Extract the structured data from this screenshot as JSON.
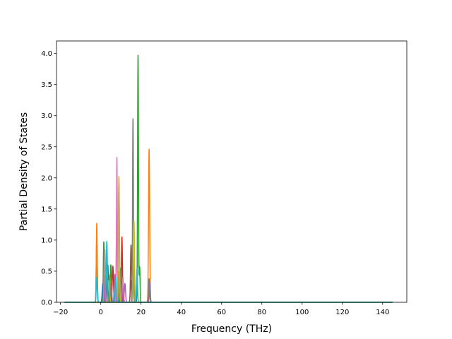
{
  "chart_data": {
    "type": "line",
    "title": "",
    "xlabel": "Frequency (THz)",
    "ylabel": "Partial Density of States",
    "xlim": [
      -22,
      152
    ],
    "ylim": [
      0,
      4.2
    ],
    "xticks": [
      -20,
      0,
      20,
      40,
      60,
      80,
      100,
      120,
      140
    ],
    "yticks": [
      0.0,
      0.5,
      1.0,
      1.5,
      2.0,
      2.5,
      3.0,
      3.5,
      4.0
    ],
    "xtick_labels": [
      "−20",
      "0",
      "20",
      "40",
      "60",
      "80",
      "100",
      "120",
      "140"
    ],
    "ytick_labels": [
      "0.0",
      "0.5",
      "1.0",
      "1.5",
      "2.0",
      "2.5",
      "3.0",
      "3.5",
      "4.0"
    ],
    "grid": false,
    "legend": "none",
    "baseline_range": [
      -18,
      145
    ],
    "series_colors": [
      "#1f77b4",
      "#ff7f0e",
      "#2ca02c",
      "#d62728",
      "#9467bd",
      "#8c564b",
      "#e377c2",
      "#7f7f7f",
      "#bcbd22",
      "#17becf"
    ],
    "series": [
      {
        "color_index": 0,
        "peaks": [
          [
            -2.0,
            1.05,
            0.25
          ],
          [
            1.0,
            0.3,
            0.3
          ],
          [
            4.5,
            0.25,
            0.35
          ],
          [
            8.0,
            1.62,
            0.25
          ],
          [
            11.0,
            0.2,
            0.3
          ]
        ]
      },
      {
        "color_index": 1,
        "peaks": [
          [
            -2.0,
            1.27,
            0.22
          ],
          [
            4.0,
            0.45,
            0.35
          ],
          [
            9.0,
            0.5,
            0.3
          ],
          [
            24.0,
            2.46,
            0.28
          ]
        ]
      },
      {
        "color_index": 2,
        "peaks": [
          [
            1.5,
            0.97,
            0.25
          ],
          [
            5.0,
            0.6,
            0.3
          ],
          [
            10.0,
            0.55,
            0.3
          ],
          [
            18.5,
            3.97,
            0.22
          ],
          [
            19.3,
            0.57,
            0.2
          ]
        ]
      },
      {
        "color_index": 3,
        "peaks": [
          [
            3.0,
            0.78,
            0.3
          ],
          [
            6.0,
            0.58,
            0.3
          ],
          [
            10.5,
            1.05,
            0.25
          ],
          [
            15.0,
            0.35,
            0.3
          ]
        ]
      },
      {
        "color_index": 4,
        "peaks": [
          [
            2.5,
            0.5,
            0.3
          ],
          [
            7.0,
            0.45,
            0.3
          ],
          [
            12.0,
            0.3,
            0.3
          ],
          [
            24.3,
            0.32,
            0.25
          ]
        ]
      },
      {
        "color_index": 5,
        "peaks": [
          [
            3.5,
            0.6,
            0.3
          ],
          [
            9.0,
            1.9,
            0.25
          ],
          [
            15.0,
            0.92,
            0.25
          ]
        ]
      },
      {
        "color_index": 6,
        "peaks": [
          [
            2.0,
            0.85,
            0.3
          ],
          [
            8.0,
            2.33,
            0.22
          ],
          [
            11.0,
            0.4,
            0.3
          ]
        ]
      },
      {
        "color_index": 7,
        "peaks": [
          [
            5.0,
            0.3,
            0.3
          ],
          [
            9.5,
            0.5,
            0.3
          ],
          [
            16.0,
            2.95,
            0.22
          ],
          [
            24.0,
            0.38,
            0.25
          ]
        ]
      },
      {
        "color_index": 8,
        "peaks": [
          [
            4.0,
            0.35,
            0.35
          ],
          [
            9.0,
            2.02,
            0.25
          ],
          [
            16.5,
            1.3,
            0.25
          ]
        ]
      },
      {
        "color_index": 9,
        "peaks": [
          [
            -2.0,
            0.4,
            0.25
          ],
          [
            3.0,
            0.98,
            0.28
          ],
          [
            7.5,
            0.4,
            0.3
          ],
          [
            18.0,
            0.55,
            0.25
          ]
        ]
      }
    ]
  }
}
